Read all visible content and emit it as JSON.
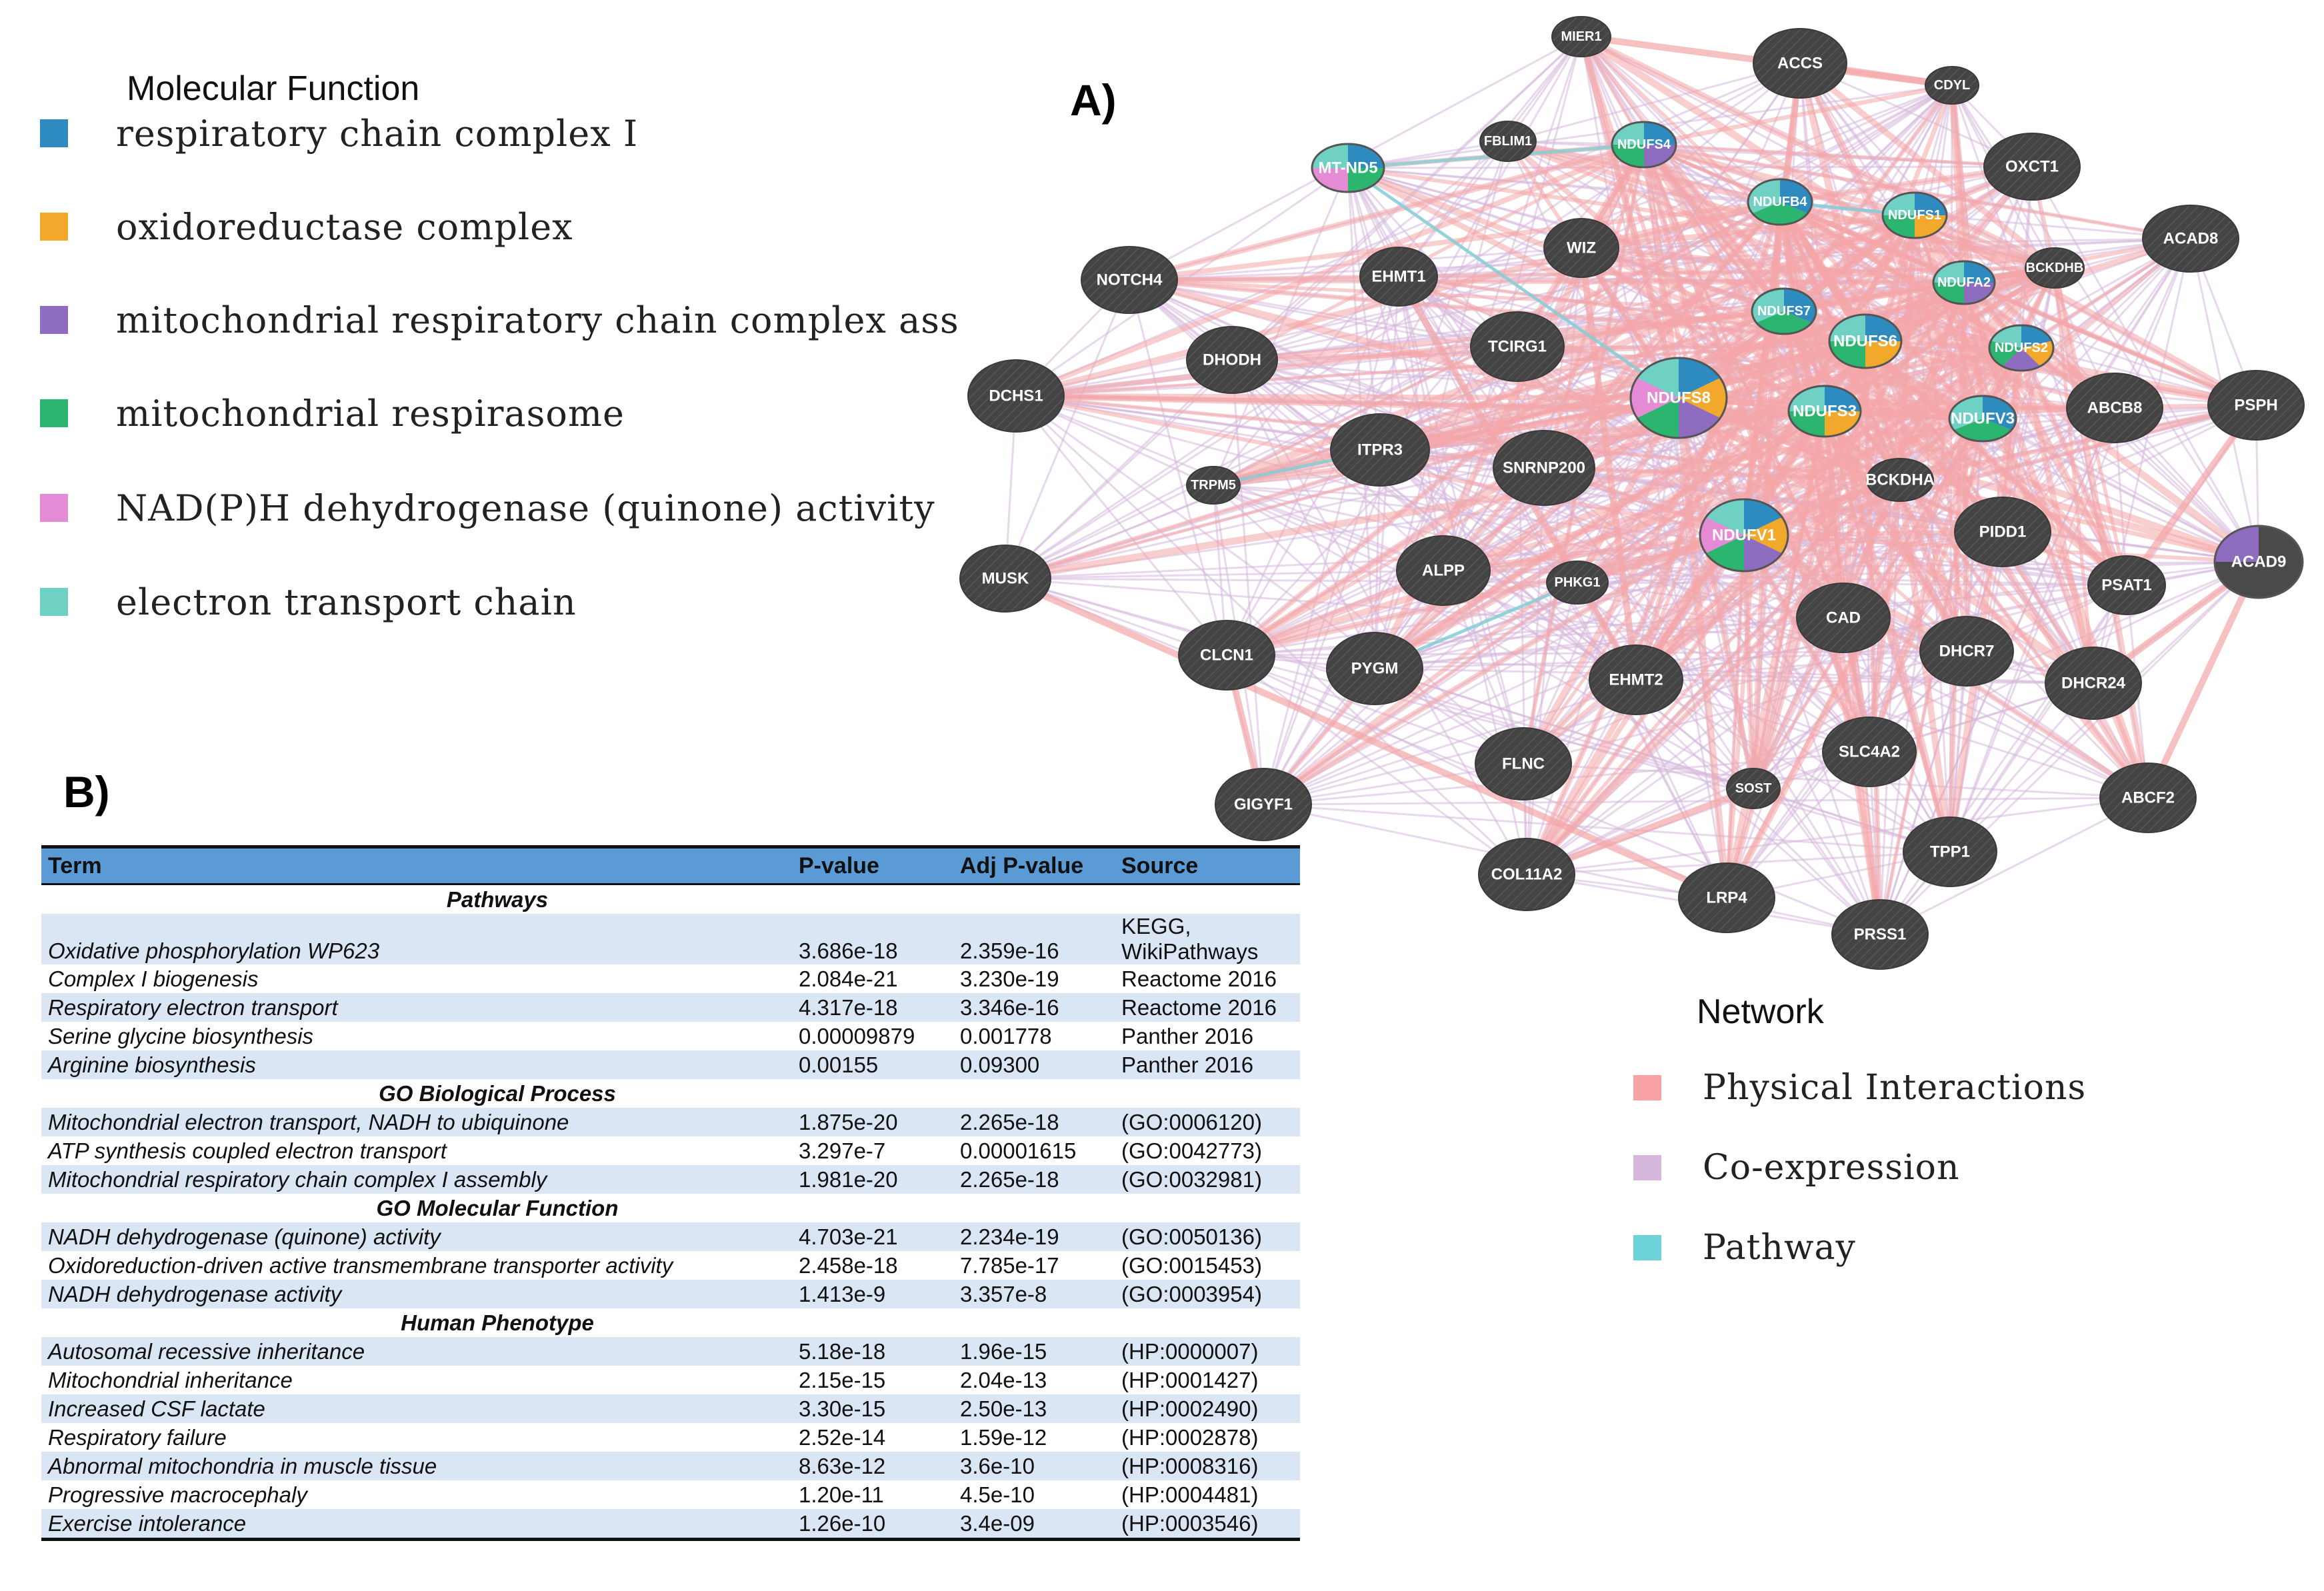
{
  "molecular_function": {
    "title": "Molecular Function",
    "items": [
      {
        "label": "respiratory chain complex I",
        "color": "#2e8bc0"
      },
      {
        "label": "oxidoreductase complex",
        "color": "#f2a92b"
      },
      {
        "label": "mitochondrial respiratory chain complex assembl",
        "color": "#8e6cc0"
      },
      {
        "label": "mitochondrial respirasome",
        "color": "#2cb56f"
      },
      {
        "label": "NAD(P)H dehydrogenase (quinone) activity",
        "color": "#e58ad4"
      },
      {
        "label": "electron transport chain",
        "color": "#6fd0c4"
      }
    ]
  },
  "panel_a": {
    "label": "A)"
  },
  "panel_b": {
    "label": "B)"
  },
  "network": {
    "node_color": "#4a4a4a",
    "edge_colors": {
      "physical": "#f4a6a8",
      "coexpression": "#d6b8dc",
      "pathway": "#7fd0d6"
    },
    "nodes": [
      {
        "id": "MIER1",
        "label": "MIER1"
      },
      {
        "id": "ACCS",
        "label": "ACCS"
      },
      {
        "id": "CDYL",
        "label": "CDYL"
      },
      {
        "id": "FBLIM1",
        "label": "FBLIM1"
      },
      {
        "id": "NDUFS4",
        "label": "NDUFS4"
      },
      {
        "id": "MT-ND5",
        "label": "MT-ND5"
      },
      {
        "id": "OXCT1",
        "label": "OXCT1"
      },
      {
        "id": "NDUFB4",
        "label": "NDUFB4"
      },
      {
        "id": "NDUFS1",
        "label": "NDUFS1"
      },
      {
        "id": "ACAD8",
        "label": "ACAD8"
      },
      {
        "id": "NOTCH4",
        "label": "NOTCH4"
      },
      {
        "id": "EHMT1",
        "label": "EHMT1"
      },
      {
        "id": "WIZ",
        "label": "WIZ"
      },
      {
        "id": "NDUFA2",
        "label": "NDUFA2"
      },
      {
        "id": "BCKDHB",
        "label": "BCKDHB"
      },
      {
        "id": "NDUFS7",
        "label": "NDUFS7"
      },
      {
        "id": "DHODH",
        "label": "DHODH"
      },
      {
        "id": "TCIRG1",
        "label": "TCIRG1"
      },
      {
        "id": "NDUFS6",
        "label": "NDUFS6"
      },
      {
        "id": "NDUFS2",
        "label": "NDUFS2"
      },
      {
        "id": "DCHS1",
        "label": "DCHS1"
      },
      {
        "id": "NDUFS8",
        "label": "NDUFS8"
      },
      {
        "id": "NDUFS3",
        "label": "NDUFS3"
      },
      {
        "id": "NDUFV3",
        "label": "NDUFV3"
      },
      {
        "id": "ABCB8",
        "label": "ABCB8"
      },
      {
        "id": "PSPH",
        "label": "PSPH"
      },
      {
        "id": "ITPR3",
        "label": "ITPR3"
      },
      {
        "id": "SNRNP200",
        "label": "SNRNP200"
      },
      {
        "id": "TRPM5",
        "label": "TRPM5"
      },
      {
        "id": "BCKDHA",
        "label": "BCKDHA"
      },
      {
        "id": "NDUFV1",
        "label": "NDUFV1"
      },
      {
        "id": "PIDD1",
        "label": "PIDD1"
      },
      {
        "id": "MUSK",
        "label": "MUSK"
      },
      {
        "id": "ALPP",
        "label": "ALPP"
      },
      {
        "id": "PHKG1",
        "label": "PHKG1"
      },
      {
        "id": "ACAD9",
        "label": "ACAD9"
      },
      {
        "id": "PSAT1",
        "label": "PSAT1"
      },
      {
        "id": "CAD",
        "label": "CAD"
      },
      {
        "id": "CLCN1",
        "label": "CLCN1"
      },
      {
        "id": "PYGM",
        "label": "PYGM"
      },
      {
        "id": "EHMT2",
        "label": "EHMT2"
      },
      {
        "id": "DHCR7",
        "label": "DHCR7"
      },
      {
        "id": "DHCR24",
        "label": "DHCR24"
      },
      {
        "id": "SLC4A2",
        "label": "SLC4A2"
      },
      {
        "id": "FLNC",
        "label": "FLNC"
      },
      {
        "id": "SOST",
        "label": "SOST"
      },
      {
        "id": "GIGYF1",
        "label": "GIGYF1"
      },
      {
        "id": "ABCF2",
        "label": "ABCF2"
      },
      {
        "id": "TPP1",
        "label": "TPP1"
      },
      {
        "id": "COL11A2",
        "label": "COL11A2"
      },
      {
        "id": "LRP4",
        "label": "LRP4"
      },
      {
        "id": "PRSS1",
        "label": "PRSS1"
      }
    ]
  },
  "network_legend": {
    "title": "Network",
    "items": [
      {
        "label": "Physical Interactions",
        "color": "#f7a3a6"
      },
      {
        "label": "Co-expression",
        "color": "#d6b8dc"
      },
      {
        "label": "Pathway",
        "color": "#6dd3d8"
      }
    ]
  },
  "table": {
    "headers": [
      "Term",
      "P-value",
      "Adj P-value",
      "Source"
    ],
    "sections": [
      {
        "title": "Pathways",
        "rows": [
          {
            "term": "Oxidative phosphorylation WP623",
            "p": "3.686e-18",
            "adj": "2.359e-16",
            "source": "KEGG,",
            "source2": "WikiPathways"
          },
          {
            "term": "Complex I biogenesis",
            "p": "2.084e-21",
            "adj": "3.230e-19",
            "source": "Reactome 2016"
          },
          {
            "term": "Respiratory electron transport",
            "p": "4.317e-18",
            "adj": "3.346e-16",
            "source": "Reactome 2016"
          },
          {
            "term": "Serine glycine biosynthesis",
            "p": "0.00009879",
            "adj": "0.001778",
            "source": "Panther 2016"
          },
          {
            "term": "Arginine biosynthesis",
            "p": "0.00155",
            "adj": "0.09300",
            "source": "Panther 2016"
          }
        ]
      },
      {
        "title": "GO Biological Process",
        "rows": [
          {
            "term": "Mitochondrial electron transport, NADH to ubiquinone",
            "p": "1.875e-20",
            "adj": "2.265e-18",
            "source": "(GO:0006120)"
          },
          {
            "term": "ATP synthesis coupled electron transport",
            "p": "3.297e-7",
            "adj": "0.00001615",
            "source": "(GO:0042773)"
          },
          {
            "term": "Mitochondrial respiratory chain complex I assembly",
            "p": "1.981e-20",
            "adj": "2.265e-18",
            "source": "(GO:0032981)"
          }
        ]
      },
      {
        "title": "GO Molecular Function",
        "rows": [
          {
            "term": "NADH dehydrogenase (quinone) activity",
            "p": "4.703e-21",
            "adj": "2.234e-19",
            "source": "(GO:0050136)"
          },
          {
            "term": "Oxidoreduction-driven active transmembrane transporter activity",
            "p": "2.458e-18",
            "adj": "7.785e-17",
            "source": "(GO:0015453)"
          },
          {
            "term": "NADH dehydrogenase activity",
            "p": "1.413e-9",
            "adj": "3.357e-8",
            "source": "(GO:0003954)"
          }
        ]
      },
      {
        "title": "Human Phenotype",
        "rows": [
          {
            "term": "Autosomal recessive inheritance",
            "p": "5.18e-18",
            "adj": "1.96e-15",
            "source": "(HP:0000007)"
          },
          {
            "term": "Mitochondrial inheritance",
            "p": "2.15e-15",
            "adj": "2.04e-13",
            "source": "(HP:0001427)"
          },
          {
            "term": "Increased CSF lactate",
            "p": "3.30e-15",
            "adj": "2.50e-13",
            "source": "(HP:0002490)"
          },
          {
            "term": "Respiratory failure",
            "p": "2.52e-14",
            "adj": "1.59e-12",
            "source": "(HP:0002878)"
          },
          {
            "term": "Abnormal mitochondria in muscle tissue",
            "p": "8.63e-12",
            "adj": "3.6e-10",
            "source": "(HP:0008316)"
          },
          {
            "term": "Progressive macrocephaly",
            "p": "1.20e-11",
            "adj": "4.5e-10",
            "source": "(HP:0004481)"
          },
          {
            "term": "Exercise intolerance",
            "p": "1.26e-10",
            "adj": "3.4e-09",
            "source": "(HP:0003546)"
          }
        ]
      }
    ]
  }
}
